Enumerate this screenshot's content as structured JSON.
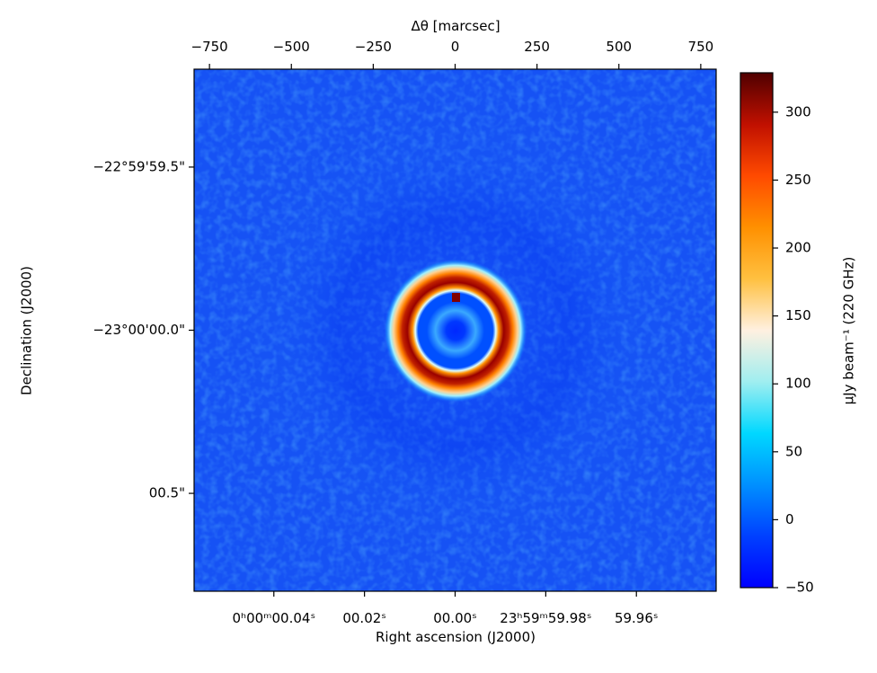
{
  "chart_data": {
    "type": "image",
    "xlabel": "Right ascension (J2000)",
    "ylabel": "Declination (J2000)",
    "x2label": "Δθ [marcsec]",
    "xlim": [
      0.0576,
      -0.0576
    ],
    "xticks": [
      {
        "value": 0.04,
        "label": "0ʰ00ᵐ00.04ˢ"
      },
      {
        "value": 0.02,
        "label": "00.02ˢ"
      },
      {
        "value": 0,
        "label": "00.00ˢ"
      },
      {
        "value": -0.02,
        "label": "23ʰ59ᵐ59.98ˢ"
      },
      {
        "value": -0.04,
        "label": "59.96ˢ"
      }
    ],
    "x2lim": [
      -797,
      797
    ],
    "x2ticks": [
      {
        "value": -750,
        "label": "−750"
      },
      {
        "value": -500,
        "label": "−500"
      },
      {
        "value": -250,
        "label": "−250"
      },
      0,
      250,
      500,
      750
    ],
    "ylim": [
      -0.8,
      0.8
    ],
    "yticks": [
      {
        "value": 0.5,
        "label": "−22°59'59.5\""
      },
      {
        "value": 0,
        "label": "−23°00'00.0\""
      },
      {
        "value": -0.5,
        "label": "00.5\""
      }
    ],
    "colorbar": {
      "label": "μJy beam⁻¹ (220 GHz)",
      "lim": [
        -50,
        329
      ],
      "ticks": [
        {
          "value": -50,
          "label": "−50"
        },
        0,
        50,
        100,
        150,
        200,
        250,
        300
      ],
      "colors": [
        "#0000ff",
        "#0040ff",
        "#0090ff",
        "#00d8ff",
        "#a0eef0",
        "#fff0e0",
        "#ffc040",
        "#ff9000",
        "#ff4a00",
        "#c01000",
        "#500000"
      ]
    }
  }
}
